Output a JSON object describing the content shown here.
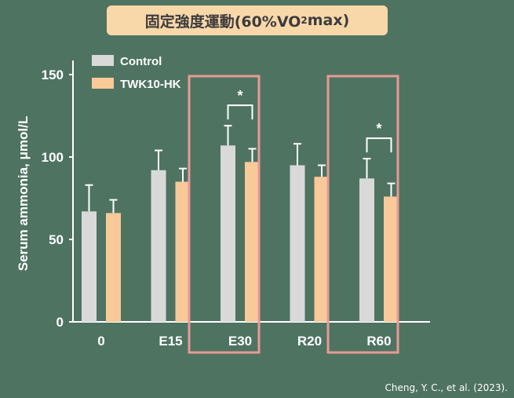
{
  "title": {
    "before": "固定強度運動(60%VO",
    "sub": "2",
    "after": "max)"
  },
  "citation": "Cheng, Y. C., et al. (2023).",
  "colors": {
    "background": "#4e7361",
    "title_box": "#f8d7a9",
    "highlight_box": "#e89a96",
    "axis": "#ffffff"
  },
  "chart_data": {
    "type": "bar",
    "ylabel": "Serum ammonia, μmol/L",
    "xlabel": "",
    "ylim": [
      0,
      150
    ],
    "yticks": [
      0,
      50,
      100,
      150
    ],
    "categories": [
      "0",
      "E15",
      "E30",
      "R20",
      "R60"
    ],
    "legend_position": "top-left",
    "series": [
      {
        "name": "Control",
        "color": "#d9d9d9",
        "values": [
          67,
          92,
          107,
          95,
          87
        ],
        "errors": [
          16,
          12,
          12,
          13,
          12
        ]
      },
      {
        "name": "TWK10-HK",
        "color": "#f9c99a",
        "values": [
          66,
          85,
          97,
          88,
          76
        ],
        "errors": [
          8,
          8,
          8,
          7,
          8
        ]
      }
    ],
    "significance": [
      {
        "category": "E30",
        "label": "*"
      },
      {
        "category": "R60",
        "label": "*"
      }
    ],
    "highlighted_categories": [
      "E30",
      "R60"
    ]
  }
}
